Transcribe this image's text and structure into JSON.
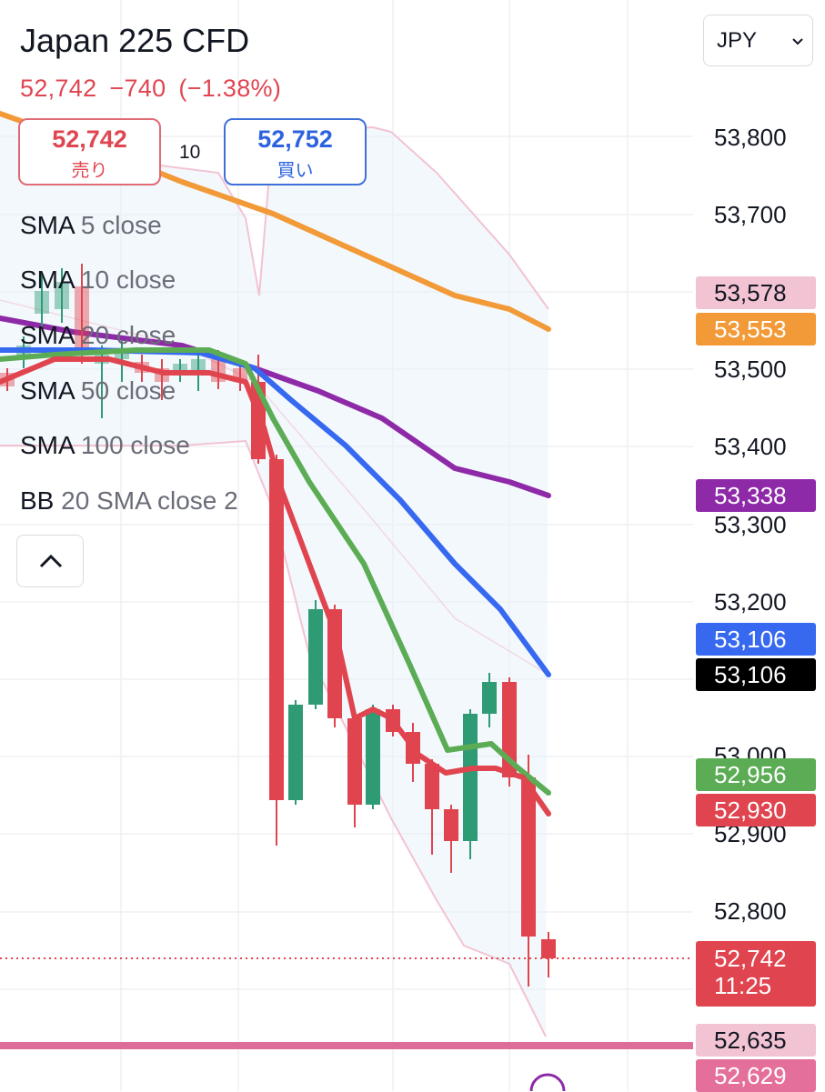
{
  "symbol_title": "Japan 225 CFD",
  "quote": {
    "price": "52,742",
    "change": "−740",
    "change_pct": "(−1.38%)"
  },
  "sell": {
    "price": "52,742",
    "label": "売り"
  },
  "buy": {
    "price": "52,752",
    "label": "買い"
  },
  "spread": "10",
  "currency": {
    "value": "JPY",
    "chevron_icon": "chevron-down-icon"
  },
  "indicators": [
    {
      "name": "SMA",
      "params": "5 close"
    },
    {
      "name": "SMA",
      "params": "10 close"
    },
    {
      "name": "SMA",
      "params": "20 close"
    },
    {
      "name": "SMA",
      "params": "50 close"
    },
    {
      "name": "SMA",
      "params": "100 close"
    },
    {
      "name": "BB",
      "params": "20 SMA close 2"
    }
  ],
  "collapse_icon": "chevron-up-icon",
  "price_axis": {
    "ticks": [
      "53,800",
      "53,700",
      "53,500",
      "53,400",
      "53,300",
      "53,200",
      "53,000",
      "52,900",
      "52,800"
    ]
  },
  "price_labels": [
    {
      "text": "53,578",
      "bg": "#f2c3d3",
      "fg": "#131722"
    },
    {
      "text": "53,553",
      "bg": "#f29a37",
      "fg": "#ffffff"
    },
    {
      "text": "53,338",
      "bg": "#8e2aa7",
      "fg": "#ffffff"
    },
    {
      "text": "53,106",
      "bg": "#3668f0",
      "fg": "#ffffff"
    },
    {
      "text": "53,106",
      "bg": "#000000",
      "fg": "#ffffff"
    },
    {
      "text": "52,956",
      "bg": "#5cac55",
      "fg": "#ffffff"
    },
    {
      "text": "52,930",
      "bg": "#e0444e",
      "fg": "#ffffff"
    },
    {
      "text": "52,635",
      "bg": "#f2c3d3",
      "fg": "#131722"
    },
    {
      "text": "52,629",
      "bg": "#e56f9b",
      "fg": "#ffffff"
    }
  ],
  "last_price_label": {
    "price": "52,742",
    "countdown": "11:25",
    "bg": "#e0444e"
  },
  "colors": {
    "up": "#2f9b75",
    "down": "#e0444e",
    "sma5": "#e0444e",
    "sma10": "#5cac55",
    "sma20": "#3668f0",
    "sma50": "#8e2aa7",
    "sma100": "#f29a37",
    "bb": "#f2c3d3"
  }
}
